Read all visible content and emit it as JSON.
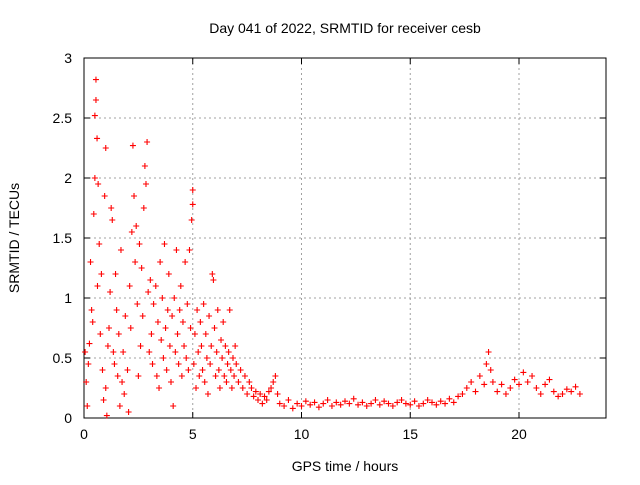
{
  "chart_data": {
    "type": "scatter",
    "title": "Day 041 of 2022, SRMTID for receiver cesb",
    "xlabel": "GPS time / hours",
    "ylabel": "SRMTID / TECUs",
    "xlim": [
      0,
      24
    ],
    "ylim": [
      0,
      3
    ],
    "x_ticks": [
      0,
      5,
      10,
      15,
      20
    ],
    "x_tick_labels": [
      "0",
      "5",
      "10",
      "15",
      "20"
    ],
    "y_ticks": [
      0,
      0.5,
      1,
      1.5,
      2,
      2.5,
      3
    ],
    "y_tick_labels": [
      "0",
      "0.5",
      "1",
      "1.5",
      "2",
      "2.5",
      "3"
    ],
    "grid": true,
    "marker": "+",
    "series_color": "#ff0000",
    "series": [
      {
        "name": "SRMTID",
        "points": [
          [
            0.05,
            0.55
          ],
          [
            0.1,
            0.3
          ],
          [
            0.15,
            0.1
          ],
          [
            0.2,
            0.45
          ],
          [
            0.25,
            0.62
          ],
          [
            0.3,
            1.3
          ],
          [
            0.35,
            0.9
          ],
          [
            0.4,
            0.8
          ],
          [
            0.45,
            1.7
          ],
          [
            0.5,
            2.0
          ],
          [
            0.5,
            2.52
          ],
          [
            0.55,
            2.65
          ],
          [
            0.55,
            2.82
          ],
          [
            0.6,
            2.33
          ],
          [
            0.62,
            1.1
          ],
          [
            0.65,
            1.95
          ],
          [
            0.7,
            1.45
          ],
          [
            0.75,
            0.7
          ],
          [
            0.8,
            1.2
          ],
          [
            0.85,
            0.4
          ],
          [
            0.9,
            0.15
          ],
          [
            0.95,
            1.85
          ],
          [
            1.0,
            2.25
          ],
          [
            1.0,
            0.25
          ],
          [
            1.05,
            0.02
          ],
          [
            1.1,
            0.6
          ],
          [
            1.15,
            0.75
          ],
          [
            1.2,
            1.05
          ],
          [
            1.25,
            1.75
          ],
          [
            1.3,
            1.65
          ],
          [
            1.35,
            0.55
          ],
          [
            1.4,
            0.45
          ],
          [
            1.45,
            1.2
          ],
          [
            1.5,
            0.9
          ],
          [
            1.55,
            0.35
          ],
          [
            1.6,
            0.7
          ],
          [
            1.65,
            0.1
          ],
          [
            1.7,
            1.4
          ],
          [
            1.75,
            0.3
          ],
          [
            1.8,
            0.55
          ],
          [
            1.85,
            0.2
          ],
          [
            1.9,
            0.85
          ],
          [
            2.0,
            0.4
          ],
          [
            2.05,
            0.05
          ],
          [
            2.1,
            1.1
          ],
          [
            2.15,
            0.75
          ],
          [
            2.2,
            1.55
          ],
          [
            2.25,
            2.27
          ],
          [
            2.3,
            1.85
          ],
          [
            2.35,
            1.3
          ],
          [
            2.4,
            1.6
          ],
          [
            2.45,
            0.95
          ],
          [
            2.5,
            0.35
          ],
          [
            2.55,
            1.45
          ],
          [
            2.6,
            0.6
          ],
          [
            2.65,
            1.25
          ],
          [
            2.7,
            0.85
          ],
          [
            2.75,
            1.75
          ],
          [
            2.8,
            2.1
          ],
          [
            2.85,
            1.95
          ],
          [
            2.9,
            2.3
          ],
          [
            2.95,
            1.05
          ],
          [
            3.0,
            0.55
          ],
          [
            3.05,
            1.15
          ],
          [
            3.1,
            0.7
          ],
          [
            3.15,
            0.45
          ],
          [
            3.2,
            0.95
          ],
          [
            3.3,
            1.1
          ],
          [
            3.35,
            0.35
          ],
          [
            3.4,
            0.8
          ],
          [
            3.45,
            0.25
          ],
          [
            3.5,
            1.3
          ],
          [
            3.55,
            0.65
          ],
          [
            3.6,
            1.0
          ],
          [
            3.65,
            0.5
          ],
          [
            3.7,
            1.45
          ],
          [
            3.75,
            0.75
          ],
          [
            3.8,
            0.4
          ],
          [
            3.85,
            0.9
          ],
          [
            3.9,
            1.2
          ],
          [
            3.95,
            0.6
          ],
          [
            4.0,
            0.3
          ],
          [
            4.05,
            0.85
          ],
          [
            4.1,
            0.1
          ],
          [
            4.15,
            1.0
          ],
          [
            4.2,
            0.55
          ],
          [
            4.25,
            1.4
          ],
          [
            4.3,
            0.7
          ],
          [
            4.35,
            0.45
          ],
          [
            4.4,
            0.9
          ],
          [
            4.45,
            1.1
          ],
          [
            4.5,
            0.35
          ],
          [
            4.55,
            0.8
          ],
          [
            4.6,
            0.6
          ],
          [
            4.65,
            1.3
          ],
          [
            4.7,
            0.5
          ],
          [
            4.75,
            0.95
          ],
          [
            4.8,
            0.4
          ],
          [
            4.85,
            1.4
          ],
          [
            4.9,
            0.75
          ],
          [
            4.95,
            1.65
          ],
          [
            5.0,
            1.9
          ],
          [
            5.0,
            1.78
          ],
          [
            5.05,
            0.45
          ],
          [
            5.1,
            0.7
          ],
          [
            5.15,
            0.25
          ],
          [
            5.2,
            0.9
          ],
          [
            5.25,
            0.55
          ],
          [
            5.3,
            0.35
          ],
          [
            5.35,
            0.8
          ],
          [
            5.4,
            0.6
          ],
          [
            5.45,
            0.4
          ],
          [
            5.5,
            0.95
          ],
          [
            5.55,
            0.3
          ],
          [
            5.6,
            0.7
          ],
          [
            5.65,
            0.5
          ],
          [
            5.7,
            0.2
          ],
          [
            5.75,
            0.85
          ],
          [
            5.8,
            0.45
          ],
          [
            5.85,
            0.6
          ],
          [
            5.9,
            1.2
          ],
          [
            5.95,
            1.15
          ],
          [
            6.0,
            0.75
          ],
          [
            6.05,
            0.35
          ],
          [
            6.1,
            0.55
          ],
          [
            6.15,
            0.9
          ],
          [
            6.2,
            0.4
          ],
          [
            6.25,
            0.25
          ],
          [
            6.3,
            0.65
          ],
          [
            6.35,
            0.5
          ],
          [
            6.4,
            0.8
          ],
          [
            6.45,
            0.35
          ],
          [
            6.5,
            0.6
          ],
          [
            6.55,
            0.3
          ],
          [
            6.6,
            0.45
          ],
          [
            6.65,
            0.55
          ],
          [
            6.7,
            0.9
          ],
          [
            6.75,
            0.4
          ],
          [
            6.8,
            0.25
          ],
          [
            6.85,
            0.5
          ],
          [
            6.9,
            0.35
          ],
          [
            6.95,
            0.6
          ],
          [
            7.0,
            0.45
          ],
          [
            7.1,
            0.3
          ],
          [
            7.2,
            0.4
          ],
          [
            7.3,
            0.25
          ],
          [
            7.4,
            0.35
          ],
          [
            7.5,
            0.2
          ],
          [
            7.6,
            0.3
          ],
          [
            7.7,
            0.25
          ],
          [
            7.8,
            0.18
          ],
          [
            7.9,
            0.22
          ],
          [
            8.0,
            0.15
          ],
          [
            8.1,
            0.2
          ],
          [
            8.2,
            0.12
          ],
          [
            8.3,
            0.18
          ],
          [
            8.4,
            0.15
          ],
          [
            8.5,
            0.22
          ],
          [
            8.6,
            0.25
          ],
          [
            8.7,
            0.3
          ],
          [
            8.8,
            0.35
          ],
          [
            8.9,
            0.2
          ],
          [
            9.0,
            0.12
          ],
          [
            9.2,
            0.1
          ],
          [
            9.4,
            0.15
          ],
          [
            9.6,
            0.08
          ],
          [
            9.8,
            0.12
          ],
          [
            10.0,
            0.1
          ],
          [
            10.2,
            0.14
          ],
          [
            10.4,
            0.11
          ],
          [
            10.6,
            0.13
          ],
          [
            10.8,
            0.09
          ],
          [
            11.0,
            0.12
          ],
          [
            11.2,
            0.15
          ],
          [
            11.4,
            0.1
          ],
          [
            11.6,
            0.13
          ],
          [
            11.8,
            0.11
          ],
          [
            12.0,
            0.14
          ],
          [
            12.2,
            0.12
          ],
          [
            12.4,
            0.16
          ],
          [
            12.6,
            0.11
          ],
          [
            12.8,
            0.13
          ],
          [
            13.0,
            0.1
          ],
          [
            13.2,
            0.12
          ],
          [
            13.4,
            0.15
          ],
          [
            13.6,
            0.11
          ],
          [
            13.8,
            0.14
          ],
          [
            14.0,
            0.12
          ],
          [
            14.2,
            0.1
          ],
          [
            14.4,
            0.13
          ],
          [
            14.6,
            0.15
          ],
          [
            14.8,
            0.12
          ],
          [
            15.0,
            0.11
          ],
          [
            15.2,
            0.14
          ],
          [
            15.4,
            0.1
          ],
          [
            15.6,
            0.12
          ],
          [
            15.8,
            0.15
          ],
          [
            16.0,
            0.13
          ],
          [
            16.2,
            0.11
          ],
          [
            16.4,
            0.14
          ],
          [
            16.6,
            0.12
          ],
          [
            16.8,
            0.16
          ],
          [
            17.0,
            0.13
          ],
          [
            17.2,
            0.18
          ],
          [
            17.4,
            0.2
          ],
          [
            17.6,
            0.25
          ],
          [
            17.8,
            0.3
          ],
          [
            18.0,
            0.22
          ],
          [
            18.2,
            0.35
          ],
          [
            18.4,
            0.28
          ],
          [
            18.5,
            0.45
          ],
          [
            18.6,
            0.55
          ],
          [
            18.7,
            0.4
          ],
          [
            18.8,
            0.3
          ],
          [
            19.0,
            0.22
          ],
          [
            19.2,
            0.28
          ],
          [
            19.4,
            0.2
          ],
          [
            19.6,
            0.25
          ],
          [
            19.8,
            0.32
          ],
          [
            20.0,
            0.28
          ],
          [
            20.2,
            0.38
          ],
          [
            20.4,
            0.3
          ],
          [
            20.6,
            0.35
          ],
          [
            20.8,
            0.25
          ],
          [
            21.0,
            0.2
          ],
          [
            21.2,
            0.28
          ],
          [
            21.4,
            0.32
          ],
          [
            21.6,
            0.22
          ],
          [
            21.8,
            0.18
          ],
          [
            22.0,
            0.2
          ],
          [
            22.2,
            0.24
          ],
          [
            22.4,
            0.22
          ],
          [
            22.6,
            0.26
          ],
          [
            22.8,
            0.2
          ]
        ]
      }
    ]
  }
}
